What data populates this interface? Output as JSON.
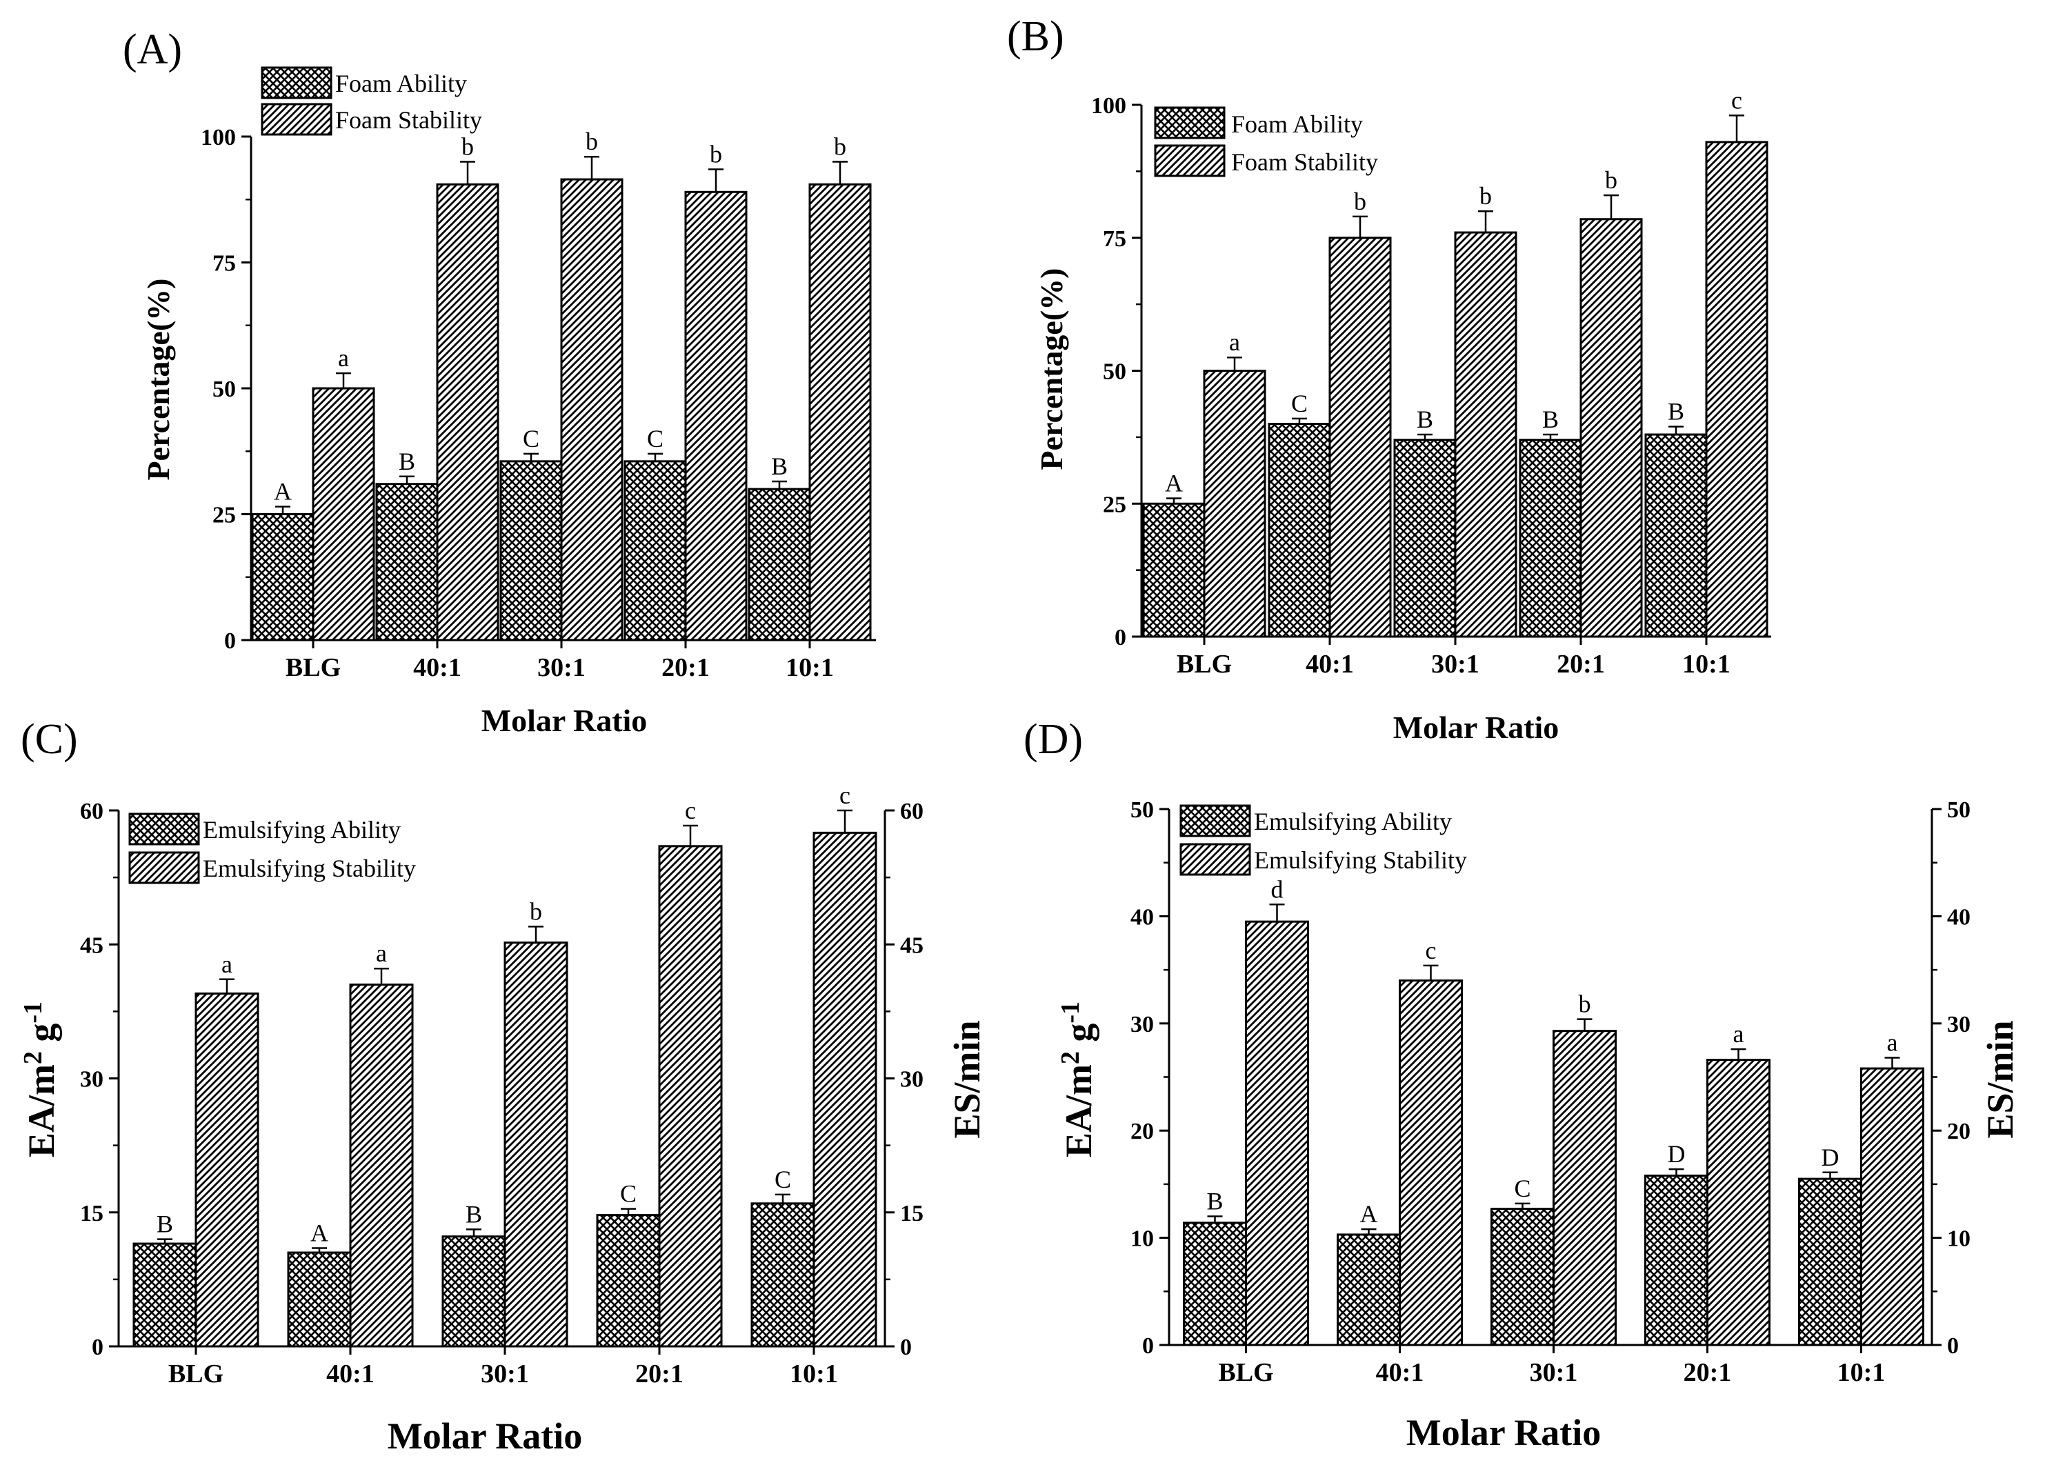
{
  "colors": {
    "ink": "#000000",
    "background": "#ffffff"
  },
  "chart_data": [
    {
      "panel": "(A)",
      "type": "bar",
      "categories": [
        "BLG",
        "40:1",
        "30:1",
        "20:1",
        "10:1"
      ],
      "xlabel": "Molar Ratio",
      "ylabel": "Percentage(%)",
      "ylim": [
        0,
        100
      ],
      "yticks": [
        "0",
        "25",
        "50",
        "75",
        "100"
      ],
      "legend_position": "top-left",
      "series": [
        {
          "name": "Foam Ability",
          "pattern": "crosshatch",
          "values": [
            25,
            31,
            35.5,
            35.5,
            30
          ],
          "errors": [
            1.5,
            1.5,
            1.5,
            1.5,
            1.5
          ],
          "letters": [
            "A",
            "B",
            "C",
            "C",
            "B"
          ]
        },
        {
          "name": "Foam Stability",
          "pattern": "diagonal",
          "values": [
            50,
            90.5,
            91.5,
            89,
            90.5
          ],
          "errors": [
            3,
            4.5,
            4.5,
            4.5,
            4.5
          ],
          "letters": [
            "a",
            "b",
            "b",
            "b",
            "b"
          ]
        }
      ]
    },
    {
      "panel": "(B)",
      "type": "bar",
      "categories": [
        "BLG",
        "40:1",
        "30:1",
        "20:1",
        "10:1"
      ],
      "xlabel": "Molar Ratio",
      "ylabel": "Percentage(%)",
      "ylim": [
        0,
        100
      ],
      "yticks": [
        "0",
        "25",
        "50",
        "75",
        "100"
      ],
      "legend_position": "top-left",
      "series": [
        {
          "name": "Foam Ability",
          "pattern": "crosshatch",
          "values": [
            25,
            40,
            37,
            37,
            38
          ],
          "errors": [
            1,
            1,
            1,
            1,
            1.5
          ],
          "letters": [
            "A",
            "C",
            "B",
            "B",
            "B"
          ]
        },
        {
          "name": "Foam Stability",
          "pattern": "diagonal",
          "values": [
            50,
            75,
            76,
            78.5,
            93
          ],
          "errors": [
            2.5,
            4,
            4,
            4.5,
            5
          ],
          "letters": [
            "a",
            "b",
            "b",
            "b",
            "c"
          ]
        }
      ]
    },
    {
      "panel": "(C)",
      "type": "bar",
      "categories": [
        "BLG",
        "40:1",
        "30:1",
        "20:1",
        "10:1"
      ],
      "xlabel": "Molar Ratio",
      "ylabel": "EA/m² g⁻¹",
      "y2label": "ES/min",
      "ylim": [
        0,
        60
      ],
      "yticks": [
        "0",
        "15",
        "30",
        "45",
        "60"
      ],
      "y2ticks": [
        "0",
        "15",
        "30",
        "45",
        "60"
      ],
      "legend_position": "top-left",
      "series": [
        {
          "name": "Emulsifying Ability",
          "pattern": "crosshatch",
          "values": [
            11.5,
            10.5,
            12.3,
            14.7,
            16
          ],
          "errors": [
            0.5,
            0.5,
            0.8,
            0.7,
            1
          ],
          "letters": [
            "B",
            "A",
            "B",
            "C",
            "C"
          ]
        },
        {
          "name": "Emulsifying Stability",
          "pattern": "diagonal",
          "values": [
            39.5,
            40.5,
            45.2,
            56,
            57.5
          ],
          "errors": [
            1.6,
            1.8,
            1.8,
            2.3,
            2.5
          ],
          "letters": [
            "a",
            "a",
            "b",
            "c",
            "c"
          ]
        }
      ]
    },
    {
      "panel": "(D)",
      "type": "bar",
      "categories": [
        "BLG",
        "40:1",
        "30:1",
        "20:1",
        "10:1"
      ],
      "xlabel": "Molar Ratio",
      "ylabel": "EA/m² g⁻¹",
      "y2label": "ES/min",
      "ylim": [
        0,
        50
      ],
      "yticks": [
        "0",
        "10",
        "20",
        "30",
        "40",
        "50"
      ],
      "y2ticks": [
        "0",
        "10",
        "20",
        "30",
        "40",
        "50"
      ],
      "legend_position": "top-left",
      "series": [
        {
          "name": "Emulsifying Ability",
          "pattern": "crosshatch",
          "values": [
            11.4,
            10.3,
            12.7,
            15.8,
            15.5
          ],
          "errors": [
            0.6,
            0.5,
            0.5,
            0.6,
            0.6
          ],
          "letters": [
            "B",
            "A",
            "C",
            "D",
            "D"
          ]
        },
        {
          "name": "Emulsifying Stability",
          "pattern": "diagonal",
          "values": [
            39.5,
            34,
            29.3,
            26.6,
            25.8
          ],
          "errors": [
            1.6,
            1.4,
            1.1,
            1,
            1
          ],
          "letters": [
            "d",
            "c",
            "b",
            "a",
            "a"
          ]
        }
      ]
    }
  ]
}
